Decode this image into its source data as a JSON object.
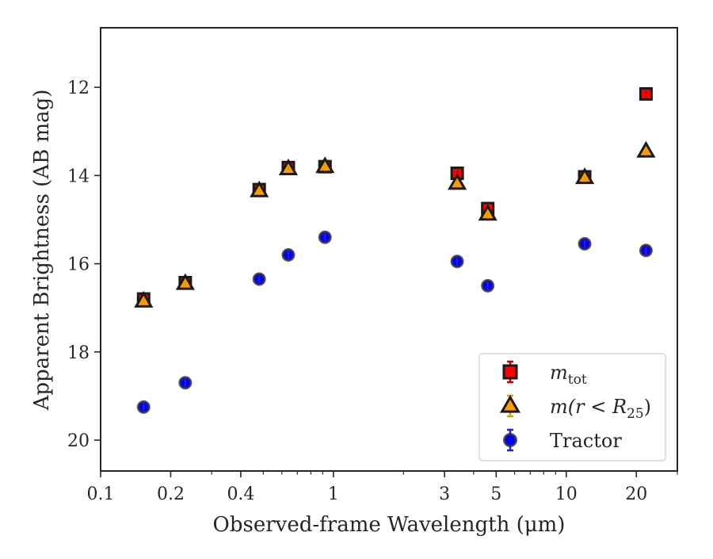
{
  "chart_data": {
    "type": "scatter",
    "xlabel": "Observed-frame Wavelength (μm)",
    "ylabel": "Apparent Brightness (AB mag)",
    "xscale": "log",
    "xlim": [
      0.1,
      30
    ],
    "ylim": [
      20.7,
      10.65
    ],
    "y_inverted": true,
    "x_ticks": [
      {
        "value": 0.1,
        "label": "0.1"
      },
      {
        "value": 0.2,
        "label": "0.2"
      },
      {
        "value": 0.4,
        "label": "0.4"
      },
      {
        "value": 1,
        "label": "1"
      },
      {
        "value": 3,
        "label": "3"
      },
      {
        "value": 5,
        "label": "5"
      },
      {
        "value": 10,
        "label": "10"
      },
      {
        "value": 20,
        "label": "20"
      }
    ],
    "x_minor_ticks": [
      0.3,
      0.5,
      0.6,
      0.7,
      0.8,
      0.9,
      2,
      4,
      6,
      7,
      8,
      9,
      30
    ],
    "y_ticks": [
      {
        "value": 12,
        "label": "12"
      },
      {
        "value": 14,
        "label": "14"
      },
      {
        "value": 16,
        "label": "16"
      },
      {
        "value": 18,
        "label": "18"
      },
      {
        "value": 20,
        "label": "20"
      }
    ],
    "grid": false,
    "legend_position": "bottom-right",
    "series": [
      {
        "name": "m_tot",
        "legend_label": {
          "base": "m",
          "sub": "tot"
        },
        "marker": "square",
        "color": "#ff0000",
        "edge_color": "#1a1a1a",
        "errorbar_color": "#cc0000",
        "x": [
          0.153,
          0.231,
          0.48,
          0.64,
          0.92,
          3.4,
          4.6,
          12.0,
          22.0
        ],
        "y": [
          16.8,
          16.43,
          14.32,
          13.82,
          13.8,
          13.95,
          14.75,
          14.03,
          12.15
        ]
      },
      {
        "name": "m(r<R25)",
        "legend_label": {
          "base": "m(r < R",
          "sub": "25",
          "tail": ")"
        },
        "marker": "triangle",
        "color": "#ff9900",
        "edge_color": "#1a1a1a",
        "errorbar_color": "#e0a000",
        "x": [
          0.153,
          0.231,
          0.48,
          0.64,
          0.92,
          3.4,
          4.6,
          12.0,
          22.0
        ],
        "y": [
          16.85,
          16.45,
          14.35,
          13.85,
          13.8,
          14.18,
          14.88,
          14.05,
          13.45
        ]
      },
      {
        "name": "Tractor",
        "legend_label": {
          "base": "Tractor"
        },
        "marker": "circle",
        "color": "#0000ff",
        "edge_color": "#333333",
        "errorbar_color": "#2222dd",
        "x": [
          0.153,
          0.231,
          0.48,
          0.64,
          0.92,
          3.4,
          4.6,
          12.0,
          22.0
        ],
        "y": [
          19.25,
          18.7,
          16.35,
          15.8,
          15.4,
          15.95,
          16.5,
          15.55,
          15.7
        ]
      }
    ]
  }
}
